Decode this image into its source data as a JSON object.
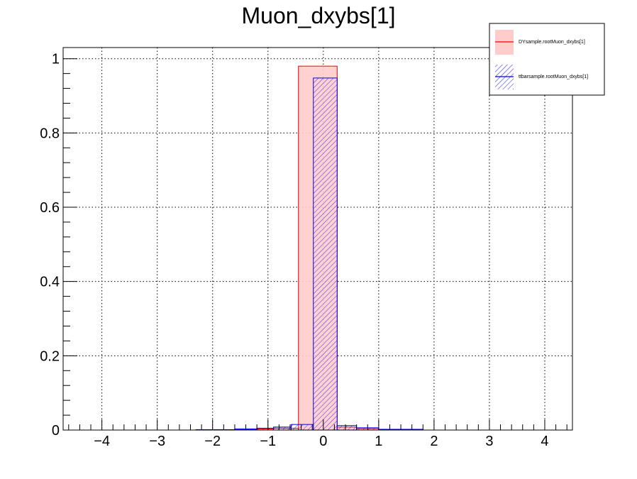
{
  "chart_data": {
    "type": "bar",
    "title": "Muon_dxybs[1]",
    "xlabel": "",
    "ylabel": "",
    "xlim": [
      -4.7,
      4.5
    ],
    "ylim": [
      0,
      1.03
    ],
    "x_ticks": [
      "−4",
      "−3",
      "−2",
      "−1",
      "0",
      "1",
      "2",
      "3",
      "4"
    ],
    "x_tick_values": [
      -4,
      -3,
      -2,
      -1,
      0,
      1,
      2,
      3,
      4
    ],
    "y_ticks": [
      "0",
      "0.2",
      "0.4",
      "0.6",
      "0.8",
      "1"
    ],
    "y_tick_values": [
      0,
      0.2,
      0.4,
      0.6,
      0.8,
      1.0
    ],
    "grid": true,
    "legend_position": "top-right",
    "series": [
      {
        "name": "DYsample.rootMuon_dxybs[1]",
        "line_color": "#ff0000",
        "fill_color": "#ffcccc",
        "fill_style": "solid",
        "bins": [
          {
            "x0": -2.3,
            "x1": -1.6,
            "y": 0.001
          },
          {
            "x0": -1.6,
            "x1": -1.2,
            "y": 0.002
          },
          {
            "x0": -1.2,
            "x1": -0.9,
            "y": 0.003
          },
          {
            "x0": -0.9,
            "x1": -0.45,
            "y": 0.005
          },
          {
            "x0": -0.45,
            "x1": 0.25,
            "y": 0.98
          },
          {
            "x0": 0.25,
            "x1": 0.6,
            "y": 0.008
          },
          {
            "x0": 0.6,
            "x1": 1.0,
            "y": 0.004
          },
          {
            "x0": 1.0,
            "x1": 1.8,
            "y": 0.001
          }
        ]
      },
      {
        "name": "ttbarsample.rootMuon_dxybs[1]",
        "line_color": "#0000ff",
        "fill_color": "#0000ff",
        "fill_style": "hatched",
        "bins": [
          {
            "x0": -2.3,
            "x1": -1.6,
            "y": 0.001
          },
          {
            "x0": -1.6,
            "x1": -1.2,
            "y": 0.003
          },
          {
            "x0": -1.2,
            "x1": -0.9,
            "y": 0.005
          },
          {
            "x0": -0.9,
            "x1": -0.58,
            "y": 0.008
          },
          {
            "x0": -0.58,
            "x1": -0.18,
            "y": 0.015
          },
          {
            "x0": -0.18,
            "x1": 0.25,
            "y": 0.948
          },
          {
            "x0": 0.25,
            "x1": 0.6,
            "y": 0.012
          },
          {
            "x0": 0.6,
            "x1": 1.0,
            "y": 0.006
          },
          {
            "x0": 1.0,
            "x1": 1.8,
            "y": 0.002
          }
        ]
      }
    ]
  }
}
